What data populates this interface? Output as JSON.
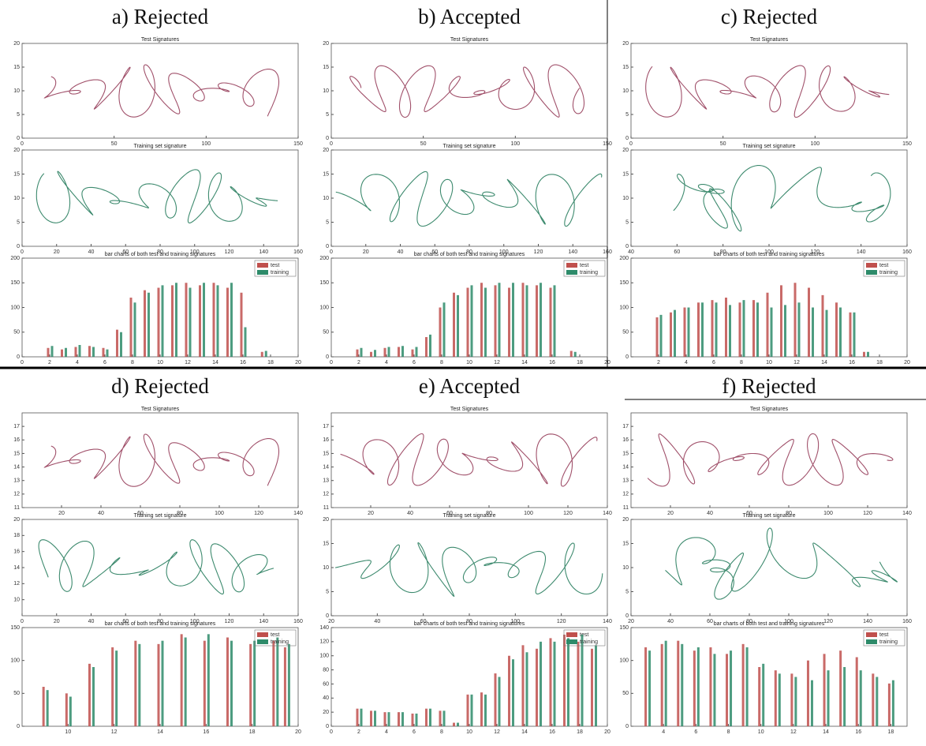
{
  "panels": [
    {
      "label": "a) Rejected",
      "test": {
        "title": "Test Signatures",
        "xlim": [
          0,
          150
        ],
        "ylim": [
          0,
          20
        ],
        "xticks": [
          0,
          50,
          100,
          150
        ],
        "yticks": [
          0,
          5,
          10,
          15,
          20
        ]
      },
      "training": {
        "title": "Training set signature",
        "xlim": [
          0,
          160
        ],
        "ylim": [
          0,
          20
        ],
        "xticks": [
          0,
          20,
          40,
          60,
          80,
          100,
          120,
          140,
          160
        ],
        "yticks": [
          0,
          5,
          10,
          15,
          20
        ]
      },
      "bars": {
        "title": "bar charts of both test and training signatures",
        "xlim": [
          0,
          20
        ],
        "ylim": [
          0,
          200
        ],
        "xticks": [
          0,
          2,
          4,
          6,
          8,
          10,
          12,
          14,
          16,
          18,
          20
        ],
        "yticks": [
          0,
          50,
          100,
          150,
          200
        ],
        "x": [
          2,
          3,
          4,
          5,
          6,
          7,
          8,
          9,
          10,
          11,
          12,
          13,
          14,
          15,
          16,
          17.5
        ],
        "series": [
          {
            "name": "test",
            "color": "#c0504d",
            "values": [
              18,
              15,
              20,
              22,
              18,
              55,
              120,
              135,
              140,
              145,
              150,
              145,
              150,
              140,
              130,
              10
            ]
          },
          {
            "name": "training",
            "color": "#2e8b6a",
            "values": [
              22,
              18,
              24,
              20,
              15,
              50,
              110,
              130,
              145,
              150,
              140,
              150,
              145,
              150,
              60,
              12
            ]
          }
        ]
      }
    },
    {
      "label": "b) Accepted",
      "test": {
        "title": "Test Signatures",
        "xlim": [
          0,
          150
        ],
        "ylim": [
          0,
          20
        ],
        "xticks": [
          0,
          50,
          100,
          150
        ],
        "yticks": [
          0,
          5,
          10,
          15,
          20
        ]
      },
      "training": {
        "title": "Training set signature",
        "xlim": [
          0,
          160
        ],
        "ylim": [
          0,
          20
        ],
        "xticks": [
          0,
          20,
          40,
          60,
          80,
          100,
          120,
          140,
          160
        ],
        "yticks": [
          0,
          5,
          10,
          15,
          20
        ]
      },
      "bars": {
        "title": "bar charts of both test and training signatures",
        "xlim": [
          0,
          20
        ],
        "ylim": [
          0,
          200
        ],
        "xticks": [
          0,
          2,
          4,
          6,
          8,
          10,
          12,
          14,
          16,
          18,
          20
        ],
        "yticks": [
          0,
          50,
          100,
          150,
          200
        ],
        "x": [
          2,
          3,
          4,
          5,
          6,
          7,
          8,
          9,
          10,
          11,
          12,
          13,
          14,
          15,
          16,
          17.5
        ],
        "series": [
          {
            "name": "test",
            "color": "#c0504d",
            "values": [
              15,
              10,
              18,
              20,
              15,
              40,
              100,
              130,
              140,
              150,
              145,
              140,
              150,
              145,
              140,
              12
            ]
          },
          {
            "name": "training",
            "color": "#2e8b6a",
            "values": [
              18,
              14,
              20,
              22,
              20,
              45,
              110,
              125,
              145,
              140,
              150,
              150,
              145,
              150,
              145,
              10
            ]
          }
        ]
      }
    },
    {
      "label": "c) Rejected",
      "test": {
        "title": "Test Signatures",
        "xlim": [
          0,
          150
        ],
        "ylim": [
          0,
          20
        ],
        "xticks": [
          0,
          50,
          100,
          150
        ],
        "yticks": [
          0,
          5,
          10,
          15,
          20
        ]
      },
      "training": {
        "title": "Training set signature",
        "xlim": [
          40,
          160
        ],
        "ylim": [
          0,
          20
        ],
        "xticks": [
          40,
          60,
          80,
          100,
          120,
          140,
          160
        ],
        "yticks": [
          0,
          5,
          10,
          15,
          20
        ]
      },
      "bars": {
        "title": "bar charts of both test and training signatures",
        "xlim": [
          0,
          20
        ],
        "ylim": [
          0,
          200
        ],
        "xticks": [
          2,
          4,
          6,
          8,
          10,
          12,
          14,
          16,
          18,
          20
        ],
        "yticks": [
          0,
          50,
          100,
          150,
          200
        ],
        "x": [
          2,
          3,
          4,
          5,
          6,
          7,
          8,
          9,
          10,
          11,
          12,
          13,
          14,
          15,
          16,
          17
        ],
        "series": [
          {
            "name": "test",
            "color": "#c0504d",
            "values": [
              80,
              90,
              100,
              110,
              115,
              120,
              110,
              115,
              130,
              145,
              150,
              140,
              125,
              110,
              90,
              10
            ]
          },
          {
            "name": "training",
            "color": "#2e8b6a",
            "values": [
              85,
              95,
              100,
              110,
              110,
              105,
              115,
              110,
              100,
              105,
              110,
              100,
              95,
              100,
              90,
              10
            ]
          }
        ]
      }
    },
    {
      "label": "d) Rejected",
      "test": {
        "title": "Test Signatures",
        "xlim": [
          0,
          140
        ],
        "ylim": [
          11,
          18
        ],
        "xticks": [
          20,
          40,
          60,
          80,
          100,
          120,
          140
        ],
        "yticks": [
          11,
          12,
          13,
          14,
          15,
          16,
          17
        ]
      },
      "training": {
        "title": "Training set signature",
        "xlim": [
          0,
          160
        ],
        "ylim": [
          8,
          20
        ],
        "xticks": [
          0,
          20,
          40,
          60,
          80,
          100,
          120,
          140,
          160
        ],
        "yticks": [
          10,
          12,
          14,
          16,
          18,
          20
        ]
      },
      "bars": {
        "title": "bar charts of both test and training signatures",
        "xlim": [
          8,
          20
        ],
        "ylim": [
          0,
          150
        ],
        "xticks": [
          10,
          12,
          14,
          16,
          18,
          20
        ],
        "yticks": [
          0,
          50,
          100,
          150
        ],
        "x": [
          9,
          10,
          11,
          12,
          13,
          14,
          15,
          16,
          17,
          18,
          19,
          19.5
        ],
        "series": [
          {
            "name": "test",
            "color": "#c0504d",
            "values": [
              60,
              50,
              95,
              120,
              130,
              125,
              140,
              130,
              135,
              125,
              130,
              120
            ]
          },
          {
            "name": "training",
            "color": "#2e8b6a",
            "values": [
              55,
              45,
              90,
              115,
              125,
              130,
              135,
              140,
              130,
              130,
              135,
              125
            ]
          }
        ]
      }
    },
    {
      "label": "e) Accepted",
      "test": {
        "title": "Test Signatures",
        "xlim": [
          0,
          140
        ],
        "ylim": [
          11,
          18
        ],
        "xticks": [
          20,
          40,
          60,
          80,
          100,
          120,
          140
        ],
        "yticks": [
          11,
          12,
          13,
          14,
          15,
          16,
          17
        ]
      },
      "training": {
        "title": "Training set signature",
        "xlim": [
          20,
          140
        ],
        "ylim": [
          0,
          20
        ],
        "xticks": [
          20,
          40,
          60,
          80,
          100,
          120,
          140
        ],
        "yticks": [
          0,
          5,
          10,
          15,
          20
        ]
      },
      "bars": {
        "title": "bar charts of both test and training signatures",
        "xlim": [
          0,
          20
        ],
        "ylim": [
          0,
          140
        ],
        "xticks": [
          0,
          2,
          4,
          6,
          8,
          10,
          12,
          14,
          16,
          18,
          20
        ],
        "yticks": [
          0,
          20,
          40,
          60,
          80,
          100,
          120,
          140
        ],
        "x": [
          2,
          3,
          4,
          5,
          6,
          7,
          8,
          9,
          10,
          11,
          12,
          13,
          14,
          15,
          16,
          17,
          18,
          19
        ],
        "series": [
          {
            "name": "test",
            "color": "#c0504d",
            "values": [
              25,
              22,
              20,
              20,
              18,
              25,
              22,
              5,
              45,
              48,
              75,
              100,
              115,
              110,
              125,
              130,
              120,
              110
            ]
          },
          {
            "name": "training",
            "color": "#2e8b6a",
            "values": [
              25,
              22,
              20,
              20,
              18,
              25,
              22,
              5,
              45,
              45,
              70,
              95,
              105,
              120,
              120,
              125,
              130,
              115
            ]
          }
        ]
      }
    },
    {
      "label": "f) Rejected",
      "test": {
        "title": "Test Signatures",
        "xlim": [
          0,
          140
        ],
        "ylim": [
          11,
          18
        ],
        "xticks": [
          20,
          40,
          60,
          80,
          100,
          120,
          140
        ],
        "yticks": [
          11,
          12,
          13,
          14,
          15,
          16,
          17
        ]
      },
      "training": {
        "title": "Training set signature",
        "xlim": [
          20,
          160
        ],
        "ylim": [
          0,
          20
        ],
        "xticks": [
          20,
          40,
          60,
          80,
          100,
          120,
          140,
          160
        ],
        "yticks": [
          0,
          5,
          10,
          15,
          20
        ]
      },
      "bars": {
        "title": "bar charts of both test and training signatures",
        "xlim": [
          2,
          19
        ],
        "ylim": [
          0,
          150
        ],
        "xticks": [
          4,
          6,
          8,
          10,
          12,
          14,
          16,
          18
        ],
        "yticks": [
          0,
          50,
          100,
          150
        ],
        "x": [
          3,
          4,
          5,
          6,
          7,
          8,
          9,
          10,
          11,
          12,
          13,
          14,
          15,
          16,
          17,
          18
        ],
        "series": [
          {
            "name": "test",
            "color": "#c0504d",
            "values": [
              120,
              125,
              130,
              115,
              120,
              110,
              125,
              90,
              85,
              80,
              100,
              110,
              115,
              105,
              80,
              65
            ]
          },
          {
            "name": "training",
            "color": "#2e8b6a",
            "values": [
              115,
              130,
              125,
              120,
              110,
              115,
              120,
              95,
              80,
              75,
              70,
              85,
              90,
              85,
              75,
              70
            ]
          }
        ]
      }
    }
  ]
}
